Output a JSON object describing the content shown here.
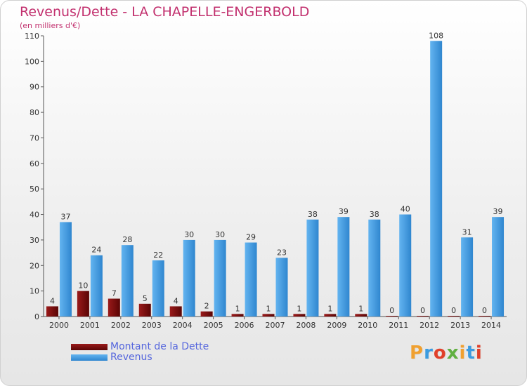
{
  "title": "Revenus/Dette - LA CHAPELLE-ENGERBOLD",
  "subtitle": "(en milliers d'€)",
  "chart_data": {
    "type": "bar",
    "categories": [
      "2000",
      "2001",
      "2002",
      "2003",
      "2004",
      "2005",
      "2006",
      "2007",
      "2008",
      "2009",
      "2010",
      "2011",
      "2012",
      "2013",
      "2014"
    ],
    "series": [
      {
        "name": "Montant de la Dette",
        "color": "#7a0b0b",
        "values": [
          4,
          10,
          7,
          5,
          4,
          2,
          1,
          1,
          1,
          1,
          1,
          0,
          0,
          0,
          0
        ]
      },
      {
        "name": "Revenus",
        "color": "#4ba3e6",
        "values": [
          37,
          24,
          28,
          22,
          30,
          30,
          29,
          23,
          38,
          39,
          38,
          40,
          108,
          31,
          39
        ]
      }
    ],
    "ylim": [
      0,
      110
    ],
    "yticks": [
      0,
      10,
      20,
      30,
      40,
      50,
      60,
      70,
      80,
      90,
      100,
      110
    ],
    "grid": false,
    "legend_position": "bottom-left"
  },
  "legend": [
    {
      "label": "Montant de la Dette",
      "color": "#7a0b0b"
    },
    {
      "label": "Revenus",
      "color": "#4ba3e6"
    }
  ],
  "logo": {
    "letters": [
      "P",
      "r",
      "o",
      "x",
      "i",
      "t",
      "i"
    ],
    "colors": [
      "#f0a030",
      "#3b9be0",
      "#e0402a",
      "#60b040",
      "#f0a030",
      "#3b9be0",
      "#e0402a"
    ]
  }
}
